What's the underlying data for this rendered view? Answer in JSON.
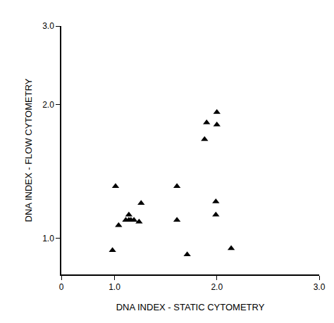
{
  "chart_data": {
    "type": "scatter",
    "x_label": "DNA INDEX - STATIC CYTOMETRY",
    "y_label": "DNA INDEX - FLOW CYTOMETRY",
    "x": [
      0.98,
      1.01,
      1.04,
      1.11,
      1.14,
      1.14,
      1.16,
      1.19,
      1.24,
      1.26,
      1.61,
      1.61,
      1.71,
      2.14,
      1.9,
      1.88,
      2.0,
      2.0,
      1.99,
      1.99
    ],
    "values": [
      0.94,
      1.31,
      1.07,
      1.1,
      1.13,
      1.1,
      1.1,
      1.1,
      1.09,
      1.2,
      1.31,
      1.1,
      0.92,
      0.95,
      1.82,
      1.67,
      1.8,
      1.92,
      1.21,
      1.13
    ],
    "color": "#000000",
    "marker": "triangle-up",
    "log": "y",
    "xlim": [
      0.48,
      3.0
    ],
    "xticks": [
      {
        "value": 0.48,
        "label": "0"
      },
      {
        "value": 1.0,
        "label": "1.0"
      },
      {
        "value": 2.0,
        "label": "2.0"
      },
      {
        "value": 3.0,
        "label": "3.0"
      }
    ],
    "ylim": [
      0.83,
      3.0
    ],
    "yticks": [
      {
        "value": 1.0,
        "label": "1.0"
      },
      {
        "value": 2.0,
        "label": "2.0"
      },
      {
        "value": 3.0,
        "label": "3.0"
      }
    ],
    "grid": false
  }
}
